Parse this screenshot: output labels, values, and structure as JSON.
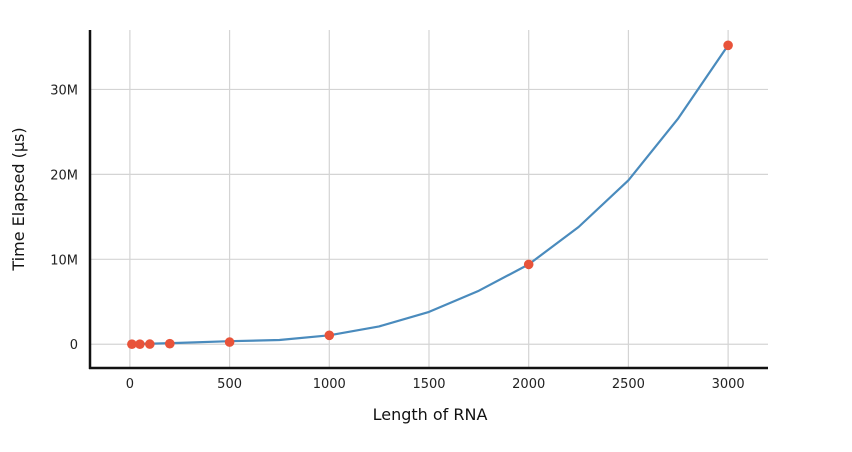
{
  "chart_data": {
    "type": "line",
    "title": "",
    "xlabel": "Length of RNA",
    "ylabel": "Time Elapsed (μs)",
    "xlim": [
      -200,
      3200
    ],
    "ylim": [
      -2800000,
      37000000
    ],
    "x_ticks": [
      0,
      500,
      1000,
      1500,
      2000,
      2500,
      3000
    ],
    "x_tick_labels": [
      "0",
      "500",
      "1000",
      "1500",
      "2000",
      "2500",
      "3000"
    ],
    "y_ticks": [
      0,
      10000000,
      20000000,
      30000000
    ],
    "y_tick_labels": [
      "0",
      "10M",
      "20M",
      "30M"
    ],
    "grid": true,
    "legend": "none",
    "series": [
      {
        "kind": "line",
        "color": "#4a8bbd",
        "x": [
          10,
          250,
          500,
          750,
          1000,
          1250,
          1500,
          1750,
          2000,
          2250,
          2500,
          2750,
          3000
        ],
        "y": [
          0,
          150000,
          350000,
          500000,
          1050000,
          2100000,
          3800000,
          6300000,
          9400000,
          13800000,
          19300000,
          26600000,
          35200000
        ]
      },
      {
        "kind": "points",
        "color": "#e8533a",
        "x": [
          10,
          50,
          100,
          200,
          500,
          1000,
          2000,
          3000
        ],
        "y": [
          0,
          0,
          20000,
          60000,
          250000,
          1050000,
          9400000,
          35200000
        ]
      }
    ]
  }
}
